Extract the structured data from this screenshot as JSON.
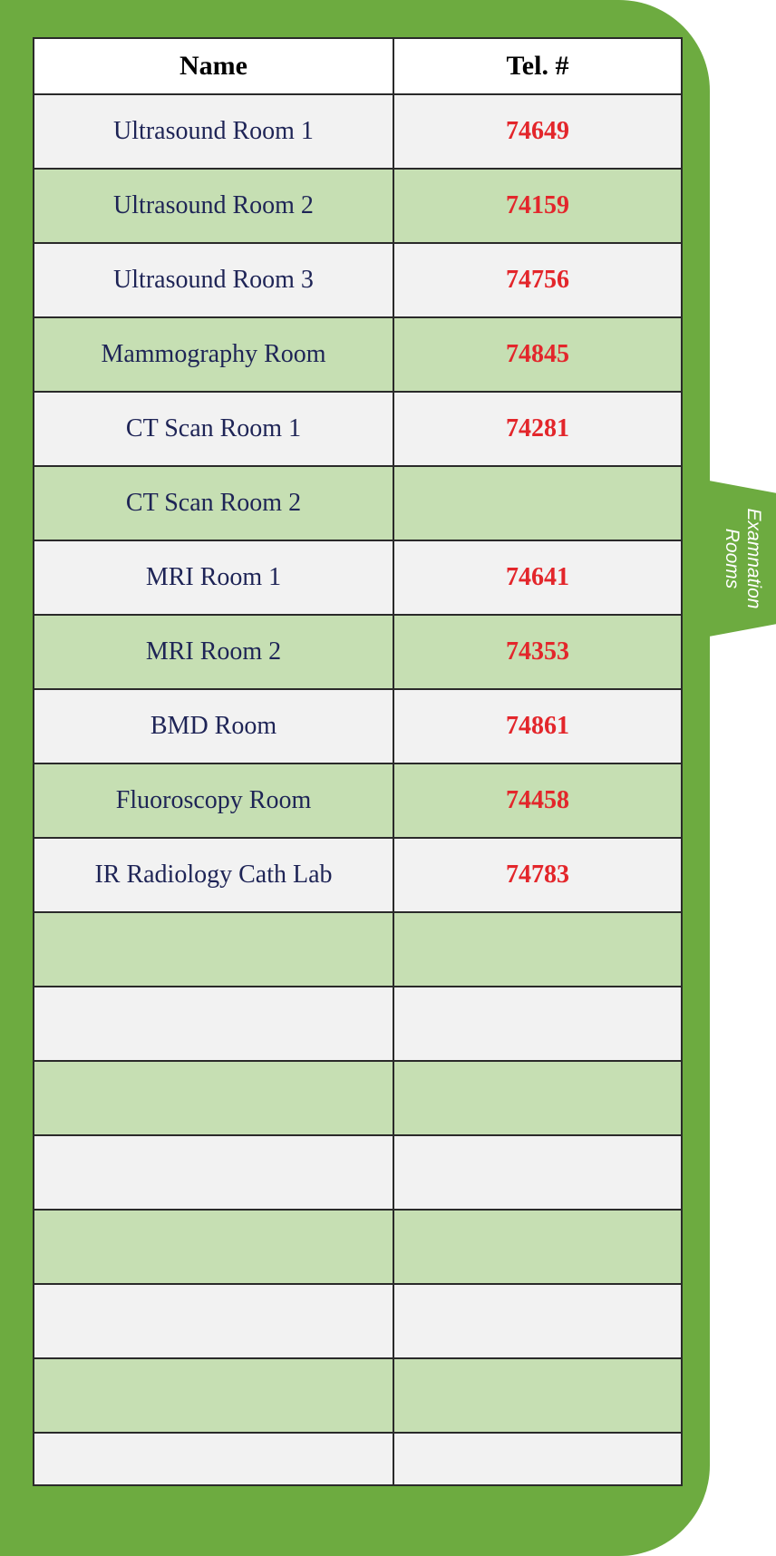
{
  "table": {
    "headers": {
      "name": "Name",
      "tel": "Tel. #"
    },
    "rows": [
      {
        "name": "Ultrasound Room 1",
        "tel": "74649"
      },
      {
        "name": "Ultrasound Room 2",
        "tel": "74159"
      },
      {
        "name": "Ultrasound Room 3",
        "tel": "74756"
      },
      {
        "name": "Mammography Room",
        "tel": "74845"
      },
      {
        "name": "CT Scan Room 1",
        "tel": "74281"
      },
      {
        "name": "CT Scan  Room 2",
        "tel": ""
      },
      {
        "name": "MRI Room 1",
        "tel": "74641"
      },
      {
        "name": "MRI Room 2",
        "tel": "74353"
      },
      {
        "name": "BMD Room",
        "tel": "74861"
      },
      {
        "name": "Fluoroscopy Room",
        "tel": "74458"
      },
      {
        "name": "IR Radiology Cath Lab",
        "tel": "74783"
      },
      {
        "name": "",
        "tel": ""
      },
      {
        "name": "",
        "tel": ""
      },
      {
        "name": "",
        "tel": ""
      },
      {
        "name": "",
        "tel": ""
      },
      {
        "name": "",
        "tel": ""
      },
      {
        "name": "",
        "tel": ""
      },
      {
        "name": "",
        "tel": ""
      },
      {
        "name": "",
        "tel": ""
      }
    ]
  },
  "side_tab": {
    "label": "Examnation Rooms"
  },
  "colors": {
    "frame_green": "#6dab40",
    "row_light": "#f2f2f2",
    "row_green": "#c6dfb3",
    "name_text": "#1e2456",
    "tel_text": "#e3262b"
  }
}
